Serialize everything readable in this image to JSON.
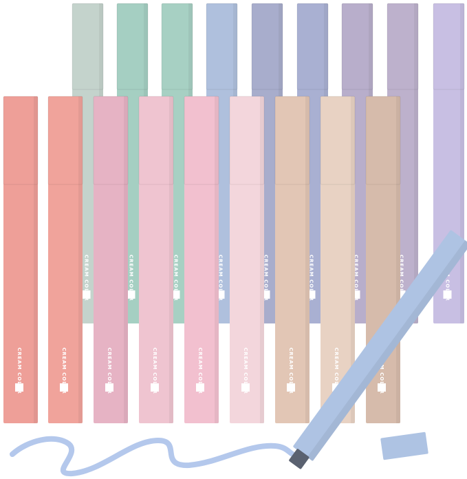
{
  "brand_logo_text": "CREAM COLOR",
  "colors": {
    "back_row": [
      "#c4d3cc",
      "#a5cfc2",
      "#a7d0c3",
      "#afc0dd",
      "#a8adcc",
      "#a9b0d2",
      "#b8aecb",
      "#bdb1cc",
      "#c8bfe3"
    ],
    "front_row": [
      "#ee9f98",
      "#f0a39b",
      "#e6b3c4",
      "#efc4d0",
      "#f2c0cf",
      "#f3d6dc",
      "#e2c6b5",
      "#e8d2c3",
      "#d6bbab"
    ],
    "open_marker": "#aec3e3",
    "ink_stroke": "#b4c8ec",
    "chisel_tip": "#5a6170"
  }
}
